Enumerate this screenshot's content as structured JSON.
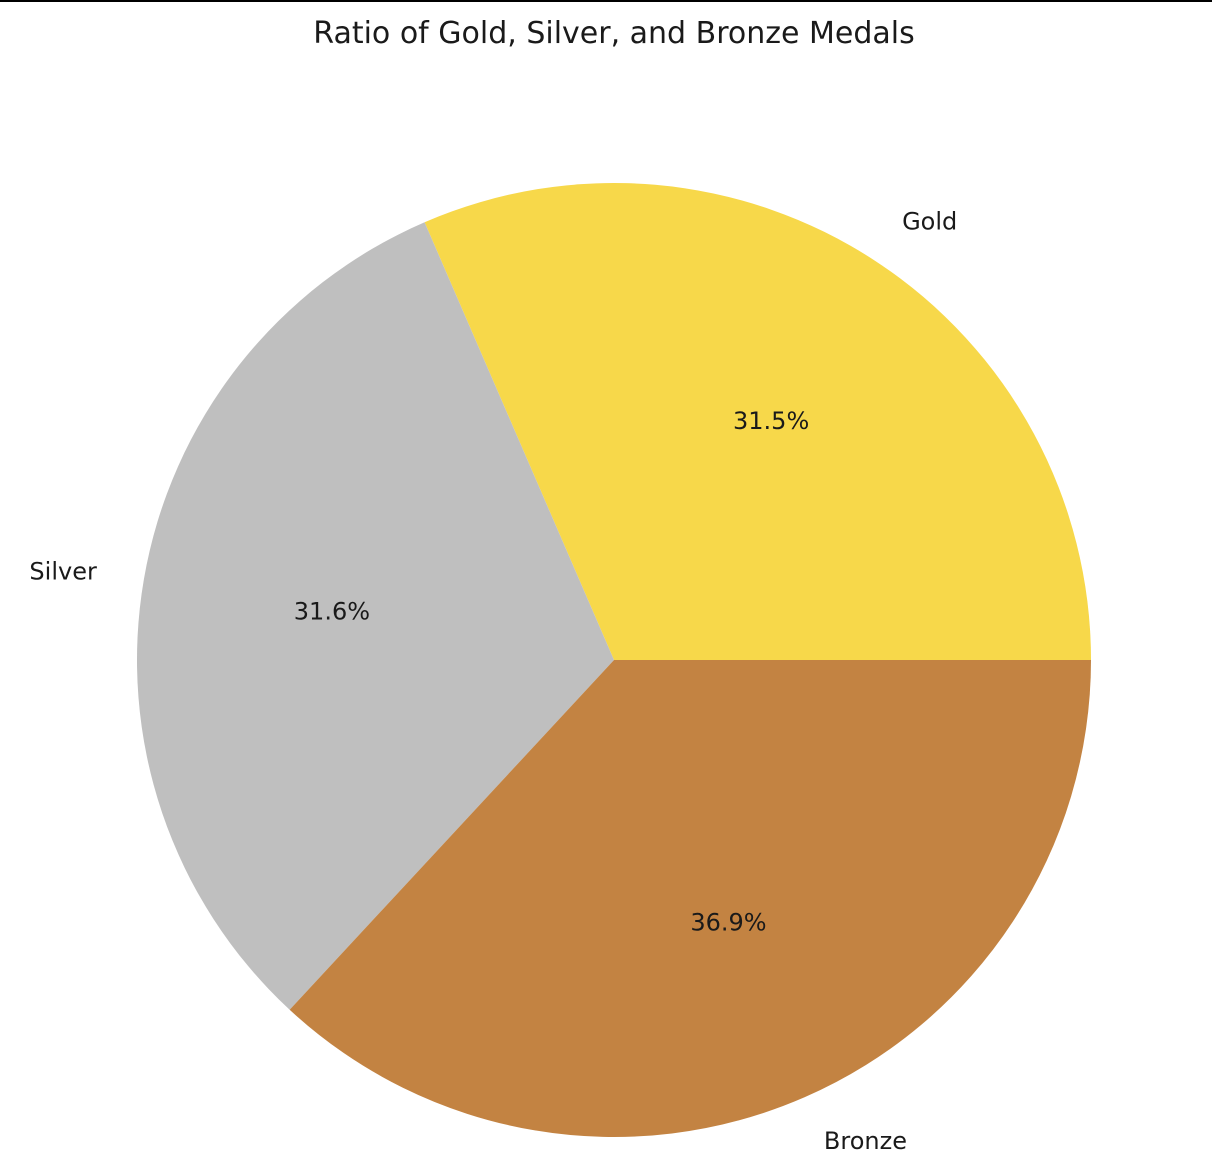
{
  "chart_data": {
    "type": "pie",
    "title": "Ratio of Gold, Silver, and Bronze Medals",
    "slices": [
      {
        "label": "Gold",
        "value": 31.5,
        "pct_label": "31.5%",
        "color": "#F7D84A"
      },
      {
        "label": "Silver",
        "value": 31.6,
        "pct_label": "31.6%",
        "color": "#BFBFBF"
      },
      {
        "label": "Bronze",
        "value": 36.9,
        "pct_label": "36.9%",
        "color": "#C38342"
      }
    ],
    "start_angle_deg": 0,
    "direction": "counterclockwise"
  }
}
